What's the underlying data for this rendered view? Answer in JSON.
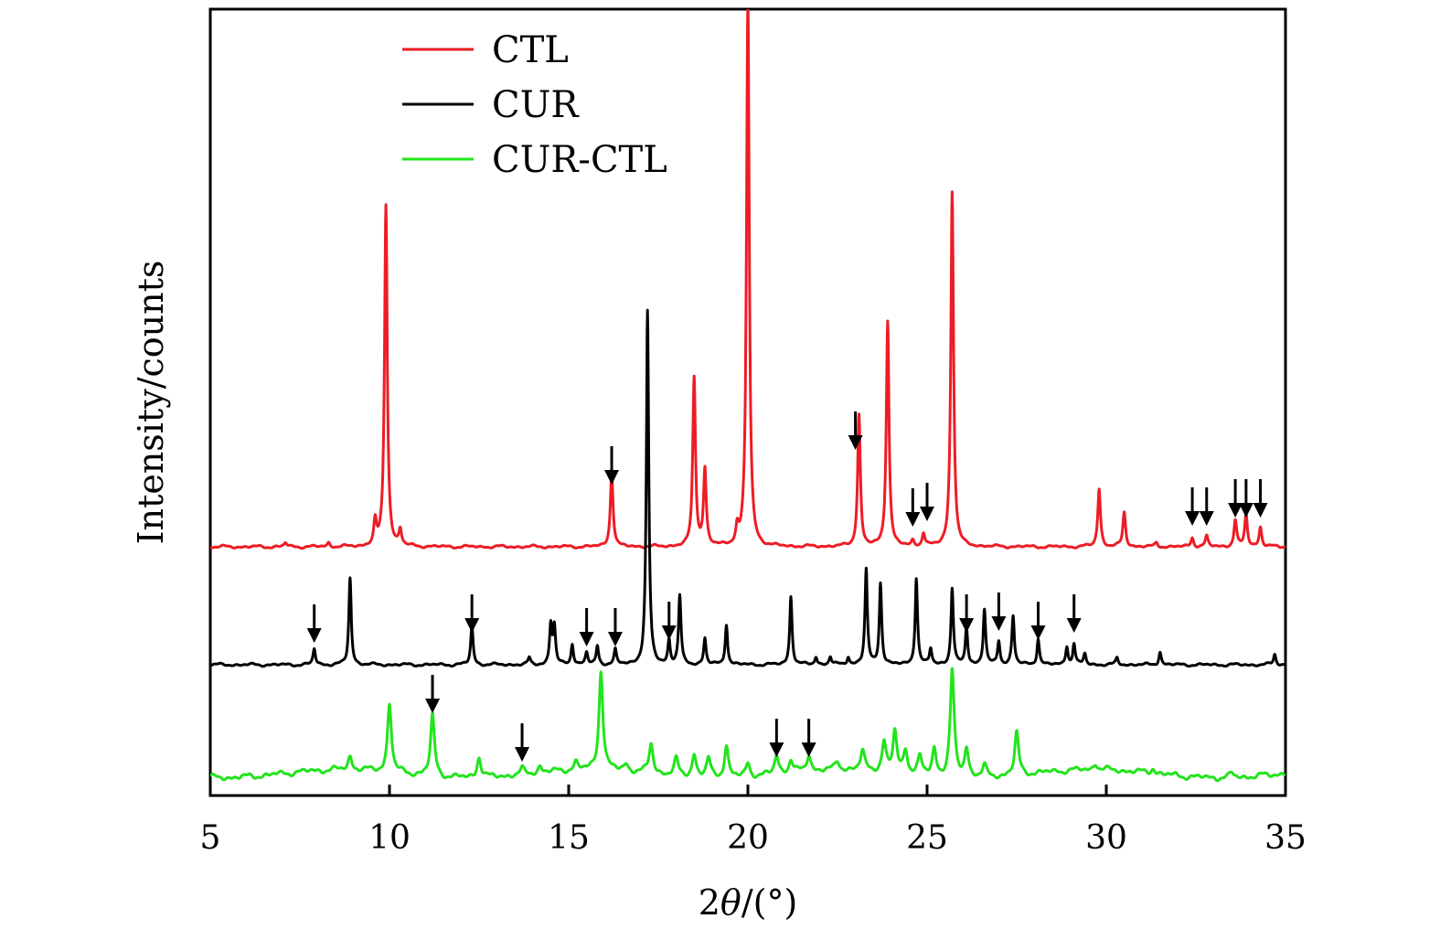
{
  "chart_data": {
    "type": "line",
    "title": "",
    "xlabel": "2θ/(°)",
    "ylabel": "Intensity/counts",
    "xlim": [
      5,
      35
    ],
    "xticks": [
      5,
      10,
      15,
      20,
      25,
      30,
      35
    ],
    "y_tick_labels": "none",
    "grid": false,
    "legend_position": "top-left",
    "offset_plot": true,
    "series": [
      {
        "name": "CTL",
        "color": "#ee1c25",
        "baseline": 0,
        "peaks": [
          [
            7.1,
            3
          ],
          [
            8.3,
            3
          ],
          [
            9.6,
            18
          ],
          [
            9.9,
            260
          ],
          [
            10.3,
            12
          ],
          [
            16.2,
            58
          ],
          [
            18.5,
            128
          ],
          [
            18.8,
            58
          ],
          [
            19.7,
            12
          ],
          [
            20.0,
            415
          ],
          [
            23.1,
            100
          ],
          [
            23.9,
            172
          ],
          [
            24.6,
            4
          ],
          [
            24.9,
            10
          ],
          [
            25.7,
            270
          ],
          [
            29.8,
            44
          ],
          [
            30.5,
            26
          ],
          [
            31.4,
            3
          ],
          [
            32.4,
            7
          ],
          [
            32.8,
            8
          ],
          [
            33.6,
            20
          ],
          [
            33.9,
            24
          ],
          [
            34.3,
            15
          ]
        ],
        "markers": [
          16.2,
          23.0,
          24.6,
          25.0,
          32.4,
          32.8,
          33.6,
          33.9,
          34.3
        ]
      },
      {
        "name": "CUR",
        "color": "#000000",
        "baseline": 0,
        "peaks": [
          [
            7.9,
            12
          ],
          [
            8.9,
            66
          ],
          [
            12.3,
            30
          ],
          [
            13.9,
            5
          ],
          [
            14.5,
            30
          ],
          [
            14.6,
            28
          ],
          [
            15.1,
            16
          ],
          [
            15.5,
            9
          ],
          [
            15.8,
            14
          ],
          [
            16.3,
            11
          ],
          [
            17.2,
            268
          ],
          [
            17.8,
            18
          ],
          [
            18.1,
            52
          ],
          [
            18.8,
            20
          ],
          [
            19.4,
            31
          ],
          [
            21.2,
            52
          ],
          [
            21.9,
            6
          ],
          [
            22.3,
            6
          ],
          [
            22.8,
            6
          ],
          [
            23.3,
            72
          ],
          [
            23.7,
            62
          ],
          [
            24.7,
            66
          ],
          [
            25.1,
            12
          ],
          [
            25.7,
            58
          ],
          [
            26.1,
            28
          ],
          [
            26.6,
            42
          ],
          [
            27.0,
            18
          ],
          [
            27.4,
            37
          ],
          [
            28.1,
            20
          ],
          [
            28.9,
            14
          ],
          [
            29.1,
            16
          ],
          [
            29.4,
            8
          ],
          [
            30.3,
            5
          ],
          [
            31.5,
            10
          ],
          [
            34.7,
            8
          ]
        ],
        "markers": [
          7.9,
          12.3,
          15.5,
          16.3,
          17.8,
          26.1,
          27.0,
          28.1,
          29.1
        ]
      },
      {
        "name": "CUR-CTL",
        "color": "#21e41b",
        "baseline": 0,
        "peaks": [
          [
            8.9,
            10
          ],
          [
            10.0,
            52
          ],
          [
            11.2,
            46
          ],
          [
            12.5,
            16
          ],
          [
            13.7,
            4
          ],
          [
            14.2,
            5
          ],
          [
            15.2,
            6
          ],
          [
            15.9,
            76
          ],
          [
            16.6,
            5
          ],
          [
            17.3,
            22
          ],
          [
            18.0,
            12
          ],
          [
            18.5,
            17
          ],
          [
            18.9,
            14
          ],
          [
            19.4,
            24
          ],
          [
            20.0,
            10
          ],
          [
            20.8,
            14
          ],
          [
            21.2,
            10
          ],
          [
            21.7,
            12
          ],
          [
            22.5,
            6
          ],
          [
            23.2,
            14
          ],
          [
            23.8,
            22
          ],
          [
            24.1,
            30
          ],
          [
            24.4,
            18
          ],
          [
            24.8,
            13
          ],
          [
            25.2,
            20
          ],
          [
            25.7,
            80
          ],
          [
            26.1,
            22
          ],
          [
            26.6,
            8
          ],
          [
            27.5,
            32
          ],
          [
            29.7,
            5
          ],
          [
            31.3,
            4
          ],
          [
            33.5,
            3
          ]
        ],
        "markers": [
          11.2,
          13.7,
          20.8,
          21.7
        ]
      }
    ]
  },
  "legend": {
    "items": [
      {
        "label": "CTL",
        "color": "#ee1c25"
      },
      {
        "label": "CUR",
        "color": "#000000"
      },
      {
        "label": "CUR-CTL",
        "color": "#21e41b"
      }
    ]
  },
  "axes": {
    "xlabel_prefix": "2",
    "xlabel_theta": "θ",
    "xlabel_suffix": "/(°)",
    "ylabel": "Intensity/counts"
  }
}
